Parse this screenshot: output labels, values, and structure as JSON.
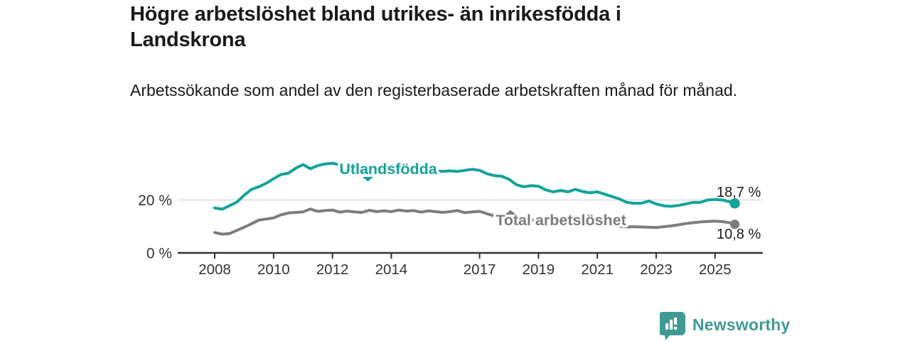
{
  "title": "Högre arbetslöshet bland utrikes- än inrikesfödda i Landskrona",
  "subtitle": "Arbetssökande som andel av den registerbaserade arbetskraften månad för månad.",
  "footer": {
    "brand": "Newsworthy",
    "logo_icon": "bar-chart-badge"
  },
  "colors": {
    "accent_teal": "#12a39a",
    "series_gray": "#7d7d7d",
    "text_dark": "#1a1a1a",
    "axis": "#333333",
    "gridline": "#dcdcdc",
    "logo_teal": "#3f9a93"
  },
  "chart_data": {
    "type": "line",
    "unit": "%",
    "grid": "horizontal-only",
    "legend_position": "inline-on-lines",
    "x_tick_years": [
      2008,
      2010,
      2012,
      2014,
      2017,
      2019,
      2021,
      2023,
      2025
    ],
    "y_ticks": [
      {
        "value": 0,
        "label": "0 %"
      },
      {
        "value": 20,
        "label": "20 %"
      }
    ],
    "xlim": [
      2007.8,
      2026.2
    ],
    "ylim": [
      0,
      38
    ],
    "x": [
      2008,
      2008.25,
      2008.5,
      2008.75,
      2009,
      2009.25,
      2009.5,
      2009.75,
      2010,
      2010.25,
      2010.5,
      2010.75,
      2011,
      2011.25,
      2011.5,
      2011.75,
      2012,
      2012.25,
      2012.5,
      2012.75,
      2013,
      2013.25,
      2013.5,
      2013.75,
      2014,
      2014.25,
      2014.5,
      2014.75,
      2015,
      2015.25,
      2015.5,
      2015.75,
      2016,
      2016.25,
      2016.5,
      2016.75,
      2017,
      2017.25,
      2017.5,
      2017.75,
      2018,
      2018.25,
      2018.5,
      2018.75,
      2019,
      2019.25,
      2019.5,
      2019.75,
      2020,
      2020.25,
      2020.5,
      2020.75,
      2021,
      2021.25,
      2021.5,
      2021.75,
      2022,
      2022.25,
      2022.5,
      2022.75,
      2023,
      2023.25,
      2023.5,
      2023.75,
      2024,
      2024.25,
      2024.5,
      2024.75,
      2025,
      2025.25,
      2025.5,
      2025.67
    ],
    "series": [
      {
        "name": "Utlandsfödda",
        "color": "#12a39a",
        "end_label": "18,7 %",
        "end_value": 18.7,
        "values": [
          17.0,
          16.5,
          17.8,
          19.2,
          21.8,
          24.0,
          25.0,
          26.3,
          28.0,
          29.6,
          30.1,
          32.0,
          33.4,
          31.8,
          33.0,
          33.6,
          33.9,
          33.2,
          33.0,
          32.6,
          32.8,
          32.3,
          32.5,
          32.0,
          31.8,
          32.2,
          31.6,
          31.4,
          31.6,
          31.2,
          31.0,
          30.8,
          31.0,
          30.8,
          31.2,
          31.6,
          31.2,
          29.9,
          29.2,
          29.0,
          27.8,
          25.8,
          25.0,
          25.4,
          25.2,
          23.8,
          23.1,
          23.6,
          23.1,
          24.0,
          23.2,
          22.7,
          23.1,
          22.2,
          21.3,
          20.4,
          19.1,
          18.7,
          18.8,
          19.6,
          18.5,
          17.8,
          17.6,
          17.9,
          18.5,
          19.1,
          19.1,
          20.0,
          20.2,
          20.0,
          19.3,
          18.7
        ]
      },
      {
        "name": "Total arbetslöshet",
        "color": "#7d7d7d",
        "end_label": "10,8 %",
        "end_value": 10.8,
        "values": [
          7.7,
          7.1,
          7.3,
          8.5,
          9.7,
          11.0,
          12.4,
          12.8,
          13.2,
          14.4,
          15.1,
          15.3,
          15.5,
          16.6,
          15.7,
          16.0,
          16.2,
          15.4,
          15.8,
          15.5,
          15.3,
          16.1,
          15.6,
          15.9,
          15.6,
          16.2,
          15.8,
          16.0,
          15.4,
          15.9,
          15.6,
          15.3,
          15.6,
          16.0,
          15.2,
          15.5,
          15.7,
          14.8,
          14.0,
          13.6,
          13.2,
          12.9,
          12.6,
          12.4,
          12.2,
          12.1,
          12.0,
          12.1,
          12.3,
          12.9,
          13.1,
          12.6,
          12.0,
          11.2,
          10.4,
          10.1,
          9.8,
          9.9,
          9.8,
          9.7,
          9.6,
          9.9,
          10.2,
          10.6,
          11.1,
          11.4,
          11.7,
          11.9,
          12.0,
          11.8,
          11.4,
          10.8
        ]
      }
    ]
  }
}
